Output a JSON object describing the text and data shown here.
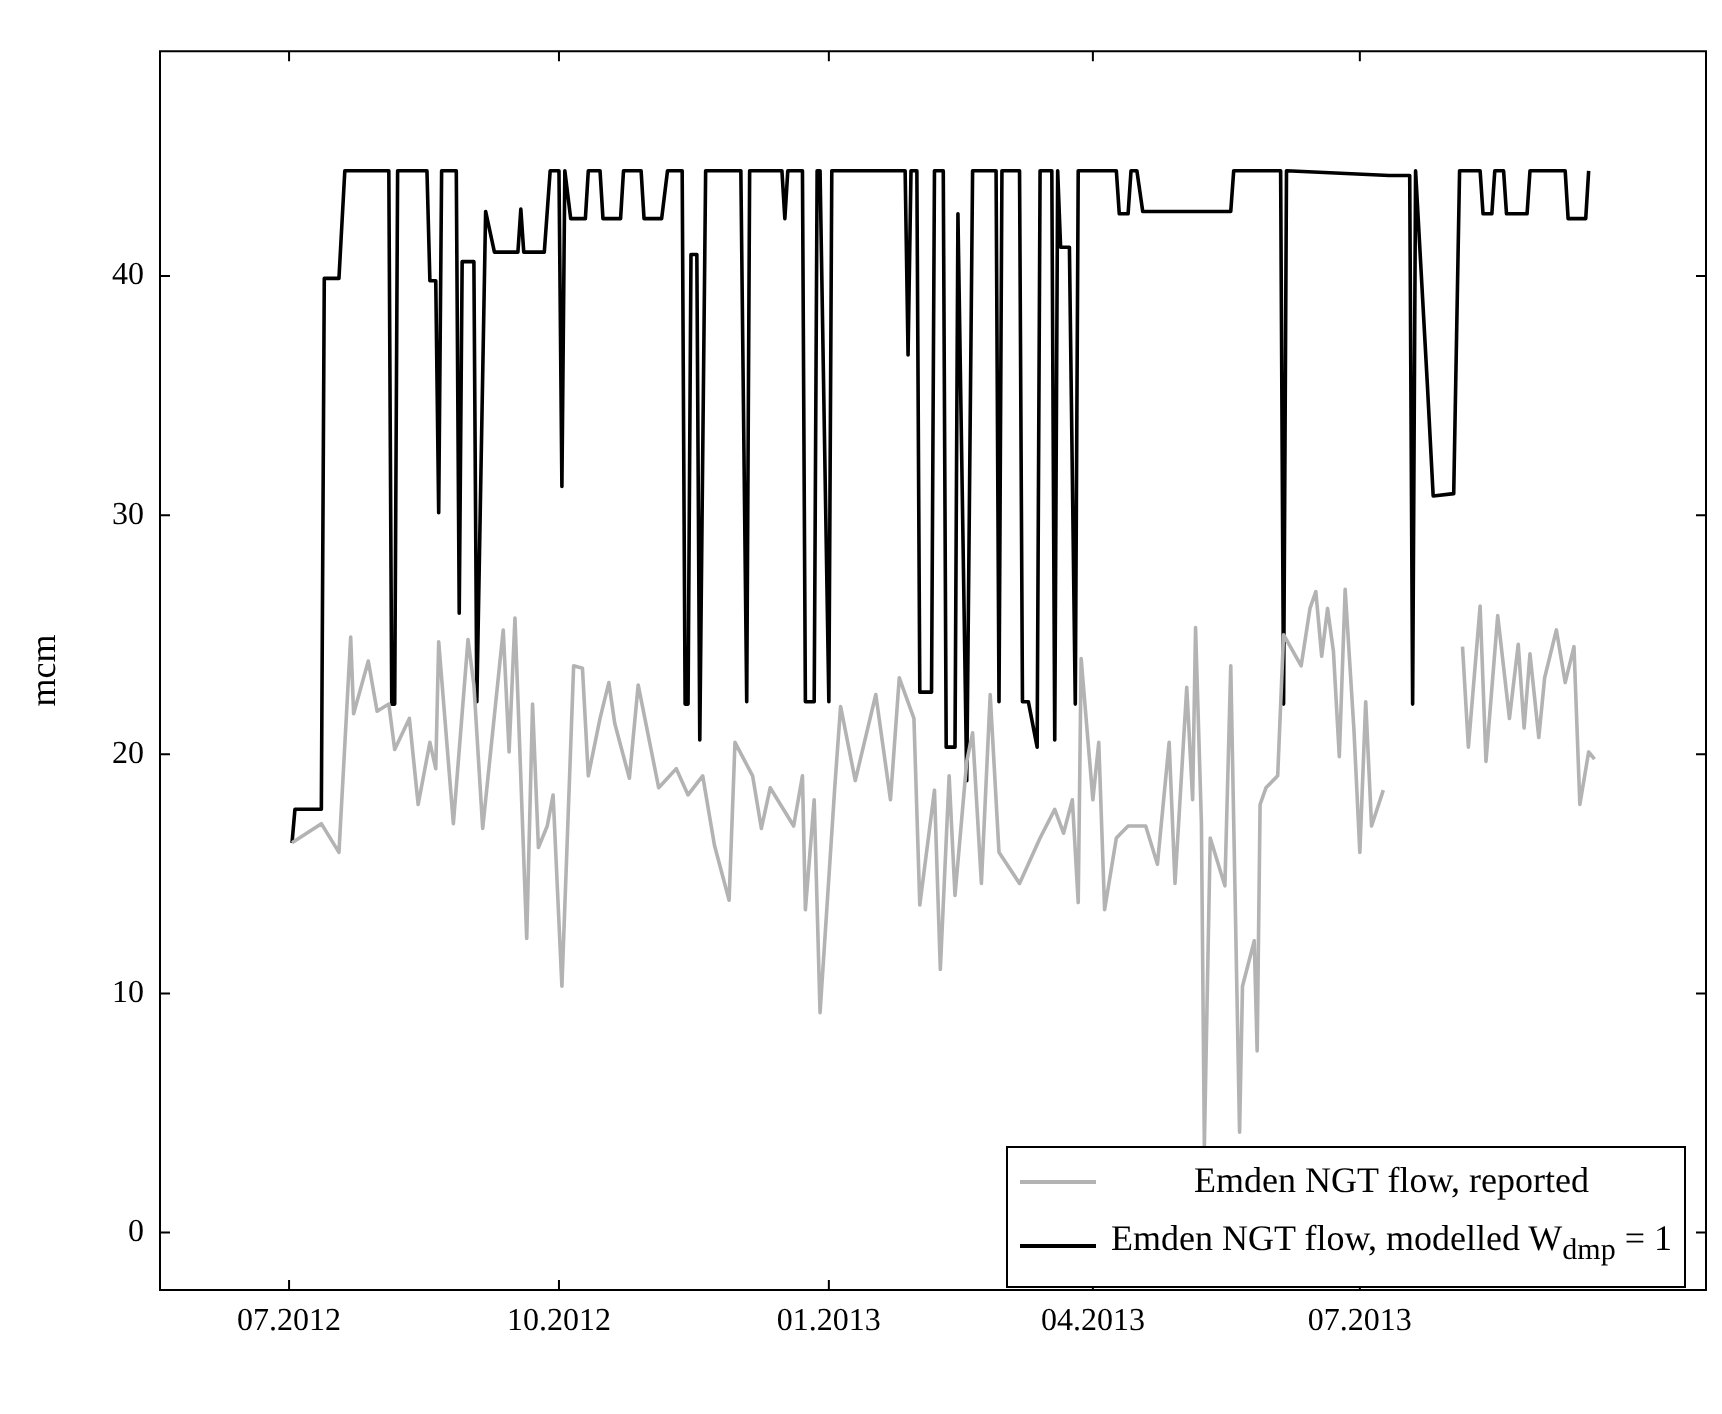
{
  "chart_data": {
    "type": "line",
    "ylabel": "mcm",
    "xlim": [
      "2012-05-18",
      "2013-10-27"
    ],
    "ylim": [
      -2.4,
      49.4
    ],
    "xticks": [
      {
        "value": "2012-07-01",
        "label": "07.2012"
      },
      {
        "value": "2012-10-01",
        "label": "10.2012"
      },
      {
        "value": "2013-01-01",
        "label": "01.2013"
      },
      {
        "value": "2013-04-01",
        "label": "04.2013"
      },
      {
        "value": "2013-07-01",
        "label": "07.2013"
      }
    ],
    "yticks": [
      0,
      10,
      20,
      30,
      40
    ],
    "grid": false,
    "legend": "bottom right",
    "marker": "none",
    "line_style": "solid",
    "series": [
      {
        "name": "Emden NGT flow, reported",
        "color": "#b3b3b3",
        "x": [
          "2012-07-02",
          "2012-07-12",
          "2012-07-18",
          "2012-07-22",
          "2012-07-23",
          "2012-07-28",
          "2012-07-31",
          "2012-08-04",
          "2012-08-06",
          "2012-08-11",
          "2012-08-14",
          "2012-08-18",
          "2012-08-20",
          "2012-08-21",
          "2012-08-26",
          "2012-08-31",
          "2012-09-02",
          "2012-09-05",
          "2012-09-12",
          "2012-09-14",
          "2012-09-16",
          "2012-09-20",
          "2012-09-22",
          "2012-09-24",
          "2012-09-27",
          "2012-09-29",
          "2012-10-02",
          "2012-10-06",
          "2012-10-09",
          "2012-10-11",
          "2012-10-15",
          "2012-10-18",
          "2012-10-20",
          "2012-10-25",
          "2012-10-28",
          "2012-11-04",
          "2012-11-10",
          "2012-11-14",
          "2012-11-19",
          "2012-11-23",
          "2012-11-28",
          "2012-11-30",
          "2012-12-06",
          "2012-12-09",
          "2012-12-12",
          "2012-12-20",
          "2012-12-23",
          "2012-12-24",
          "2012-12-27",
          "2012-12-29",
          "2013-01-03",
          "2013-01-05",
          "2013-01-10",
          "2013-01-17",
          "2013-01-22",
          "2013-01-25",
          "2013-01-30",
          "2013-02-01",
          "2013-02-06",
          "2013-02-08",
          "2013-02-11",
          "2013-02-13",
          "2013-02-17",
          "2013-02-19",
          "2013-02-22",
          "2013-02-25",
          "2013-02-28",
          "2013-03-07",
          "2013-03-14",
          "2013-03-19",
          "2013-03-22",
          "2013-03-25",
          "2013-03-27",
          "2013-03-28",
          "2013-04-01",
          "2013-04-03",
          "2013-04-05",
          "2013-04-09",
          "2013-04-13",
          "2013-04-19",
          "2013-04-23",
          "2013-04-27",
          "2013-04-29",
          "2013-05-03",
          "2013-05-05",
          "2013-05-06",
          "2013-05-08",
          "2013-05-09",
          "2013-05-11",
          "2013-05-16",
          "2013-05-18",
          "2013-05-21",
          "2013-05-22",
          "2013-05-26",
          "2013-05-27",
          "2013-05-28",
          "2013-05-30",
          "2013-06-03",
          "2013-06-05",
          "2013-06-11",
          "2013-06-14",
          "2013-06-16",
          "2013-06-18",
          "2013-06-20",
          "2013-06-22",
          "2013-06-24",
          "2013-06-26",
          "2013-06-29",
          "2013-07-01",
          "2013-07-03",
          "2013-07-05",
          "2013-07-09",
          "2013-07-10",
          "2013-08-02",
          "2013-08-05",
          "2013-08-07",
          "2013-08-11",
          "2013-08-13",
          "2013-08-17",
          "2013-08-21",
          "2013-08-24",
          "2013-08-26",
          "2013-08-28",
          "2013-08-31",
          "2013-09-02",
          "2013-09-06",
          "2013-09-09",
          "2013-09-12",
          "2013-09-14",
          "2013-09-17",
          "2013-09-19"
        ],
        "values": [
          16.3,
          17.1,
          15.9,
          24.9,
          21.7,
          23.9,
          21.8,
          22.1,
          20.2,
          21.5,
          17.9,
          20.5,
          19.4,
          24.7,
          17.1,
          24.8,
          22.9,
          16.9,
          25.2,
          20.1,
          25.7,
          12.3,
          22.1,
          16.1,
          17.0,
          18.3,
          10.3,
          23.7,
          23.6,
          19.1,
          21.5,
          23.0,
          21.3,
          19.0,
          22.9,
          18.6,
          19.4,
          18.3,
          19.1,
          16.2,
          13.9,
          20.5,
          19.1,
          16.9,
          18.6,
          17.0,
          19.1,
          13.5,
          18.1,
          9.2,
          18.6,
          22.0,
          18.9,
          22.5,
          18.1,
          23.2,
          21.5,
          13.7,
          18.5,
          11.0,
          19.1,
          14.1,
          19.7,
          20.9,
          14.6,
          22.5,
          15.9,
          14.6,
          16.5,
          17.7,
          16.7,
          18.1,
          13.8,
          24.0,
          18.1,
          20.5,
          13.5,
          16.5,
          17.0,
          17.0,
          15.4,
          20.5,
          14.6,
          22.8,
          18.1,
          25.3,
          17.1,
          3.6,
          16.5,
          14.5,
          23.7,
          4.2,
          10.3,
          12.2,
          7.6,
          17.9,
          18.6,
          19.1,
          25.0,
          23.7,
          26.1,
          26.8,
          24.1,
          26.1,
          24.3,
          19.9,
          26.9,
          21.0,
          15.9,
          22.2,
          17.0,
          18.5,
          null,
          null,
          24.5,
          20.3,
          26.2,
          19.7,
          25.8,
          21.5,
          24.6,
          21.1,
          24.2,
          20.7,
          23.2,
          25.2,
          23.0,
          24.5,
          17.9,
          20.1,
          19.8
        ]
      },
      {
        "name": "Emden NGT flow, modelled W$_{dmp}$ = 1",
        "color": "#000000",
        "x": [
          "2012-07-02",
          "2012-07-03",
          "2012-07-12",
          "2012-07-13",
          "2012-07-18",
          "2012-07-20",
          "2012-08-04",
          "2012-08-05",
          "2012-08-06",
          "2012-08-07",
          "2012-08-17",
          "2012-08-18",
          "2012-08-20",
          "2012-08-21",
          "2012-08-22",
          "2012-08-27",
          "2012-08-28",
          "2012-08-29",
          "2012-09-02",
          "2012-09-03",
          "2012-09-06",
          "2012-09-09",
          "2012-09-17",
          "2012-09-18",
          "2012-09-19",
          "2012-09-26",
          "2012-09-28",
          "2012-10-01",
          "2012-10-02",
          "2012-10-03",
          "2012-10-05",
          "2012-10-10",
          "2012-10-11",
          "2012-10-15",
          "2012-10-16",
          "2012-10-22",
          "2012-10-23",
          "2012-10-29",
          "2012-10-30",
          "2012-11-05",
          "2012-11-07",
          "2012-11-12",
          "2012-11-13",
          "2012-11-14",
          "2012-11-15",
          "2012-11-17",
          "2012-11-18",
          "2012-11-20",
          "2012-12-02",
          "2012-12-04",
          "2012-12-05",
          "2012-12-16",
          "2012-12-17",
          "2012-12-18",
          "2012-12-23",
          "2012-12-24",
          "2012-12-27",
          "2012-12-28",
          "2012-12-29",
          "2013-01-01",
          "2013-01-02",
          "2013-01-27",
          "2013-01-28",
          "2013-01-29",
          "2013-01-31",
          "2013-02-01",
          "2013-02-05",
          "2013-02-06",
          "2013-02-09",
          "2013-02-10",
          "2013-02-13",
          "2013-02-14",
          "2013-02-17",
          "2013-02-19",
          "2013-02-27",
          "2013-02-28",
          "2013-03-01",
          "2013-03-07",
          "2013-03-08",
          "2013-03-10",
          "2013-03-13",
          "2013-03-14",
          "2013-03-18",
          "2013-03-19",
          "2013-03-20",
          "2013-03-21",
          "2013-03-24",
          "2013-03-26",
          "2013-03-27",
          "2013-04-09",
          "2013-04-10",
          "2013-04-13",
          "2013-04-14",
          "2013-04-16",
          "2013-04-18",
          "2013-05-18",
          "2013-05-19",
          "2013-06-04",
          "2013-06-05",
          "2013-06-06",
          "2013-07-11",
          "2013-07-18",
          "2013-07-19",
          "2013-07-20",
          "2013-07-24",
          "2013-07-26",
          "2013-08-02",
          "2013-08-04",
          "2013-08-11",
          "2013-08-12",
          "2013-08-15",
          "2013-08-16",
          "2013-08-19",
          "2013-08-20",
          "2013-08-27",
          "2013-08-28",
          "2013-09-09",
          "2013-09-10",
          "2013-09-16",
          "2013-09-17"
        ],
        "values": [
          16.3,
          17.7,
          17.7,
          39.9,
          39.9,
          44.4,
          44.4,
          22.1,
          22.1,
          44.4,
          44.4,
          39.8,
          39.8,
          30.1,
          44.4,
          44.4,
          25.9,
          40.6,
          40.6,
          22.2,
          42.7,
          41.0,
          41.0,
          42.8,
          41.0,
          41.0,
          44.4,
          44.4,
          31.2,
          44.4,
          42.4,
          42.4,
          44.4,
          44.4,
          42.4,
          42.4,
          44.4,
          44.4,
          42.4,
          42.4,
          44.4,
          44.4,
          22.1,
          22.1,
          40.9,
          40.9,
          20.6,
          44.4,
          44.4,
          22.2,
          44.4,
          44.4,
          42.4,
          44.4,
          44.4,
          22.2,
          22.2,
          44.4,
          44.4,
          22.2,
          44.4,
          44.4,
          36.7,
          44.4,
          44.4,
          22.6,
          22.6,
          44.4,
          44.4,
          20.3,
          20.3,
          42.6,
          18.9,
          44.4,
          44.4,
          22.2,
          44.4,
          44.4,
          22.2,
          22.2,
          20.3,
          44.4,
          44.4,
          20.6,
          44.4,
          41.2,
          41.2,
          22.1,
          44.4,
          44.4,
          42.6,
          42.6,
          44.4,
          44.4,
          42.7,
          42.7,
          44.4,
          44.4,
          22.1,
          44.4,
          44.2,
          44.2,
          22.1,
          44.4,
          35.5,
          30.8,
          30.9,
          44.4,
          44.4,
          42.6,
          42.6,
          44.4,
          44.4,
          42.6,
          42.6,
          44.4,
          44.4,
          42.4,
          42.4,
          44.4
        ]
      }
    ]
  }
}
